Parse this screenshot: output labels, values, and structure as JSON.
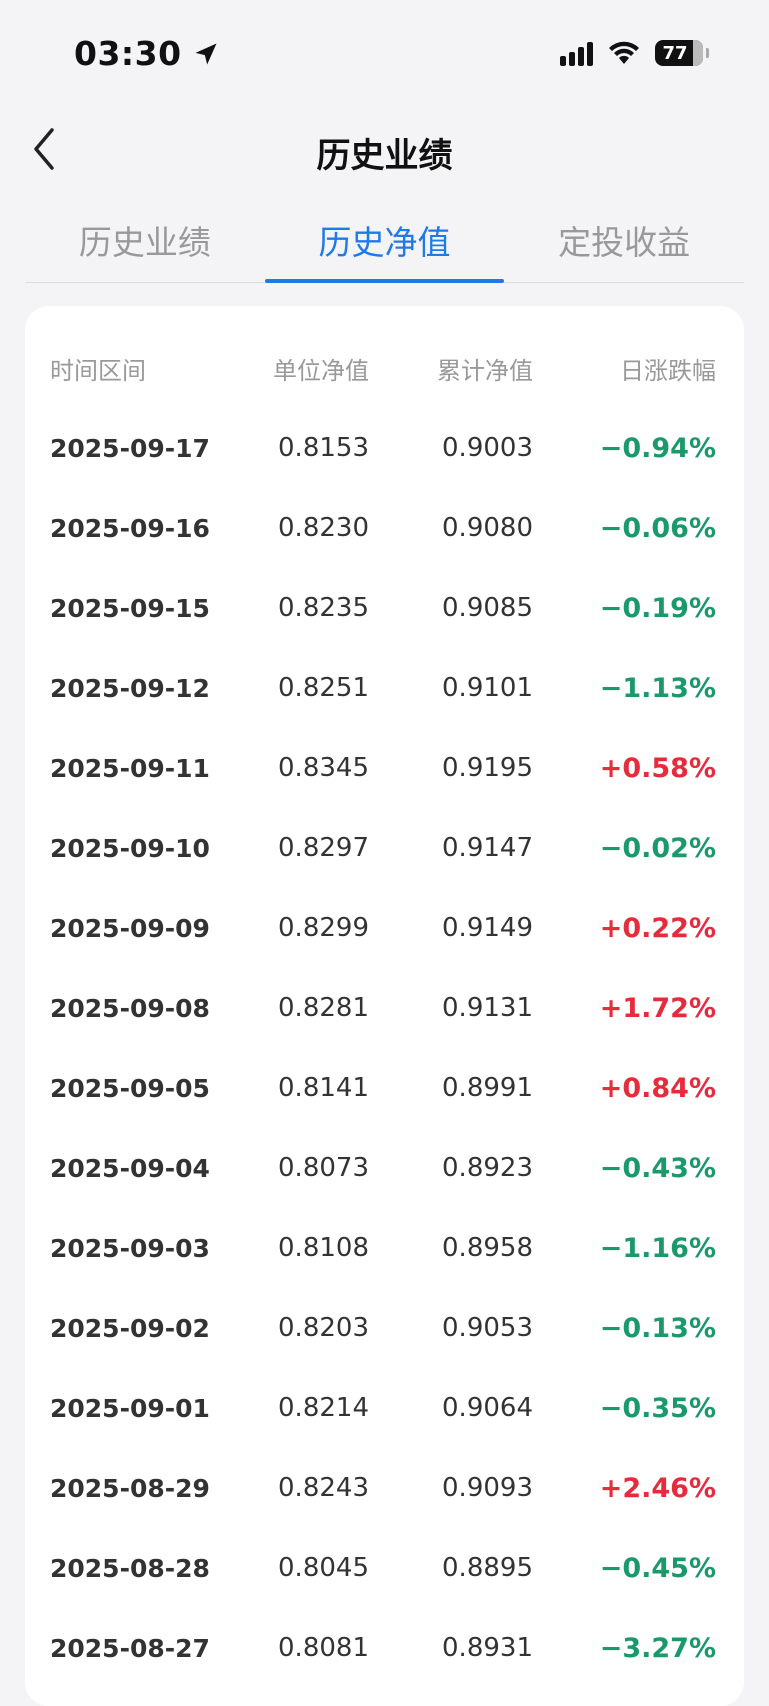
{
  "status_bar": {
    "time": "03:30",
    "battery": "77"
  },
  "nav": {
    "title": "历史业绩"
  },
  "tabs": [
    {
      "label": "历史业绩",
      "active": false
    },
    {
      "label": "历史净值",
      "active": true
    },
    {
      "label": "定投收益",
      "active": false
    }
  ],
  "table": {
    "headers": [
      "时间区间",
      "单位净值",
      "累计净值",
      "日涨跌幅"
    ],
    "rows": [
      {
        "date": "2025-09-17",
        "unit": "0.8153",
        "total": "0.9003",
        "change": "−0.94%",
        "dir": "down"
      },
      {
        "date": "2025-09-16",
        "unit": "0.8230",
        "total": "0.9080",
        "change": "−0.06%",
        "dir": "down"
      },
      {
        "date": "2025-09-15",
        "unit": "0.8235",
        "total": "0.9085",
        "change": "−0.19%",
        "dir": "down"
      },
      {
        "date": "2025-09-12",
        "unit": "0.8251",
        "total": "0.9101",
        "change": "−1.13%",
        "dir": "down"
      },
      {
        "date": "2025-09-11",
        "unit": "0.8345",
        "total": "0.9195",
        "change": "+0.58%",
        "dir": "up"
      },
      {
        "date": "2025-09-10",
        "unit": "0.8297",
        "total": "0.9147",
        "change": "−0.02%",
        "dir": "down"
      },
      {
        "date": "2025-09-09",
        "unit": "0.8299",
        "total": "0.9149",
        "change": "+0.22%",
        "dir": "up"
      },
      {
        "date": "2025-09-08",
        "unit": "0.8281",
        "total": "0.9131",
        "change": "+1.72%",
        "dir": "up"
      },
      {
        "date": "2025-09-05",
        "unit": "0.8141",
        "total": "0.8991",
        "change": "+0.84%",
        "dir": "up"
      },
      {
        "date": "2025-09-04",
        "unit": "0.8073",
        "total": "0.8923",
        "change": "−0.43%",
        "dir": "down"
      },
      {
        "date": "2025-09-03",
        "unit": "0.8108",
        "total": "0.8958",
        "change": "−1.16%",
        "dir": "down"
      },
      {
        "date": "2025-09-02",
        "unit": "0.8203",
        "total": "0.9053",
        "change": "−0.13%",
        "dir": "down"
      },
      {
        "date": "2025-09-01",
        "unit": "0.8214",
        "total": "0.9064",
        "change": "−0.35%",
        "dir": "down"
      },
      {
        "date": "2025-08-29",
        "unit": "0.8243",
        "total": "0.9093",
        "change": "+2.46%",
        "dir": "up"
      },
      {
        "date": "2025-08-28",
        "unit": "0.8045",
        "total": "0.8895",
        "change": "−0.45%",
        "dir": "down"
      },
      {
        "date": "2025-08-27",
        "unit": "0.8081",
        "total": "0.8931",
        "change": "−3.27%",
        "dir": "down"
      }
    ]
  },
  "colors": {
    "accent": "#1f7ae8",
    "down": "#1a9a6b",
    "up": "#e62b3d"
  }
}
